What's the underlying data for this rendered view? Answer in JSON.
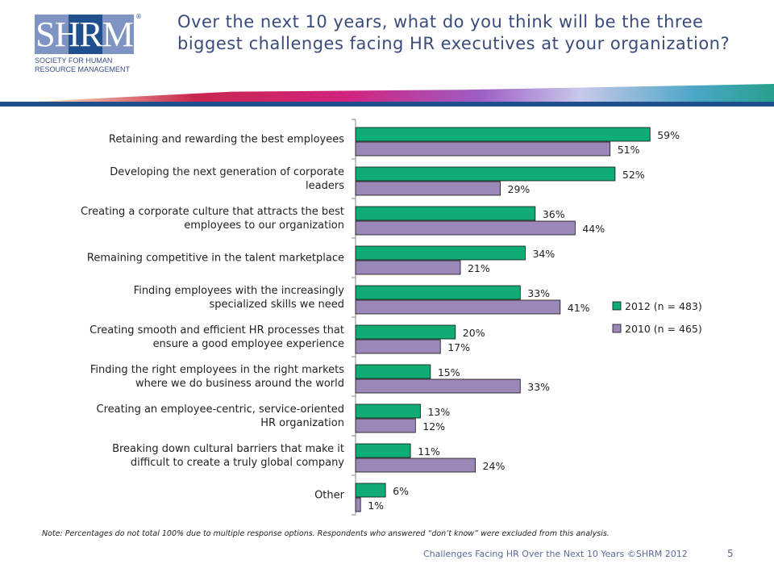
{
  "logo": {
    "letters": "SHRM",
    "line1": "SOCIETY FOR HUMAN",
    "line2": "RESOURCE MANAGEMENT",
    "reg": "®"
  },
  "title": "Over the next 10 years, what do you think will be the three biggest challenges facing HR executives at your organization?",
  "chart_data": {
    "type": "bar",
    "orientation": "horizontal",
    "categories": [
      "Retaining and rewarding the best employees",
      "Developing the next generation of corporate leaders",
      "Creating a corporate culture that attracts the best employees to our organization",
      "Remaining competitive in the talent marketplace",
      "Finding employees with the increasingly specialized skills we need",
      "Creating smooth and efficient HR processes that ensure a good employee experience",
      "Finding the right employees in the right markets where we do business around the world",
      "Creating an employee-centric, service-oriented HR organization",
      "Breaking down cultural barriers that make it difficult to create a truly global company",
      "Other"
    ],
    "label_lines": [
      [
        "Retaining and rewarding the best employees"
      ],
      [
        "Developing the next generation of corporate",
        "leaders"
      ],
      [
        "Creating a corporate culture that attracts the best",
        "employees to our organization"
      ],
      [
        "Remaining competitive in the talent marketplace"
      ],
      [
        "Finding employees with the increasingly",
        "specialized skills we need"
      ],
      [
        "Creating smooth and efficient HR processes that",
        "ensure a good employee experience"
      ],
      [
        "Finding the right employees in the right markets",
        "where we do business around the world"
      ],
      [
        "Creating an employee-centric, service-oriented",
        "HR organization"
      ],
      [
        "Breaking down cultural barriers that make it",
        "difficult to create a truly global company"
      ],
      [
        "Other"
      ]
    ],
    "series": [
      {
        "name": "2012 (n = 483)",
        "color": "#0fad74",
        "values": [
          59,
          52,
          36,
          34,
          33,
          20,
          15,
          13,
          11,
          6
        ]
      },
      {
        "name": "2010 (n = 465)",
        "color": "#9c88b8",
        "values": [
          51,
          29,
          44,
          21,
          41,
          17,
          33,
          12,
          24,
          1
        ]
      }
    ],
    "unit": "%",
    "xlim": [
      0,
      60
    ],
    "legend_position": "right"
  },
  "note": "Note: Percentages do not total 100% due to multiple response options. Respondents who answered “don’t know” were excluded from this analysis.",
  "footer": "Challenges Facing HR Over the Next 10 Years ©SHRM 2012",
  "page_number": "5"
}
